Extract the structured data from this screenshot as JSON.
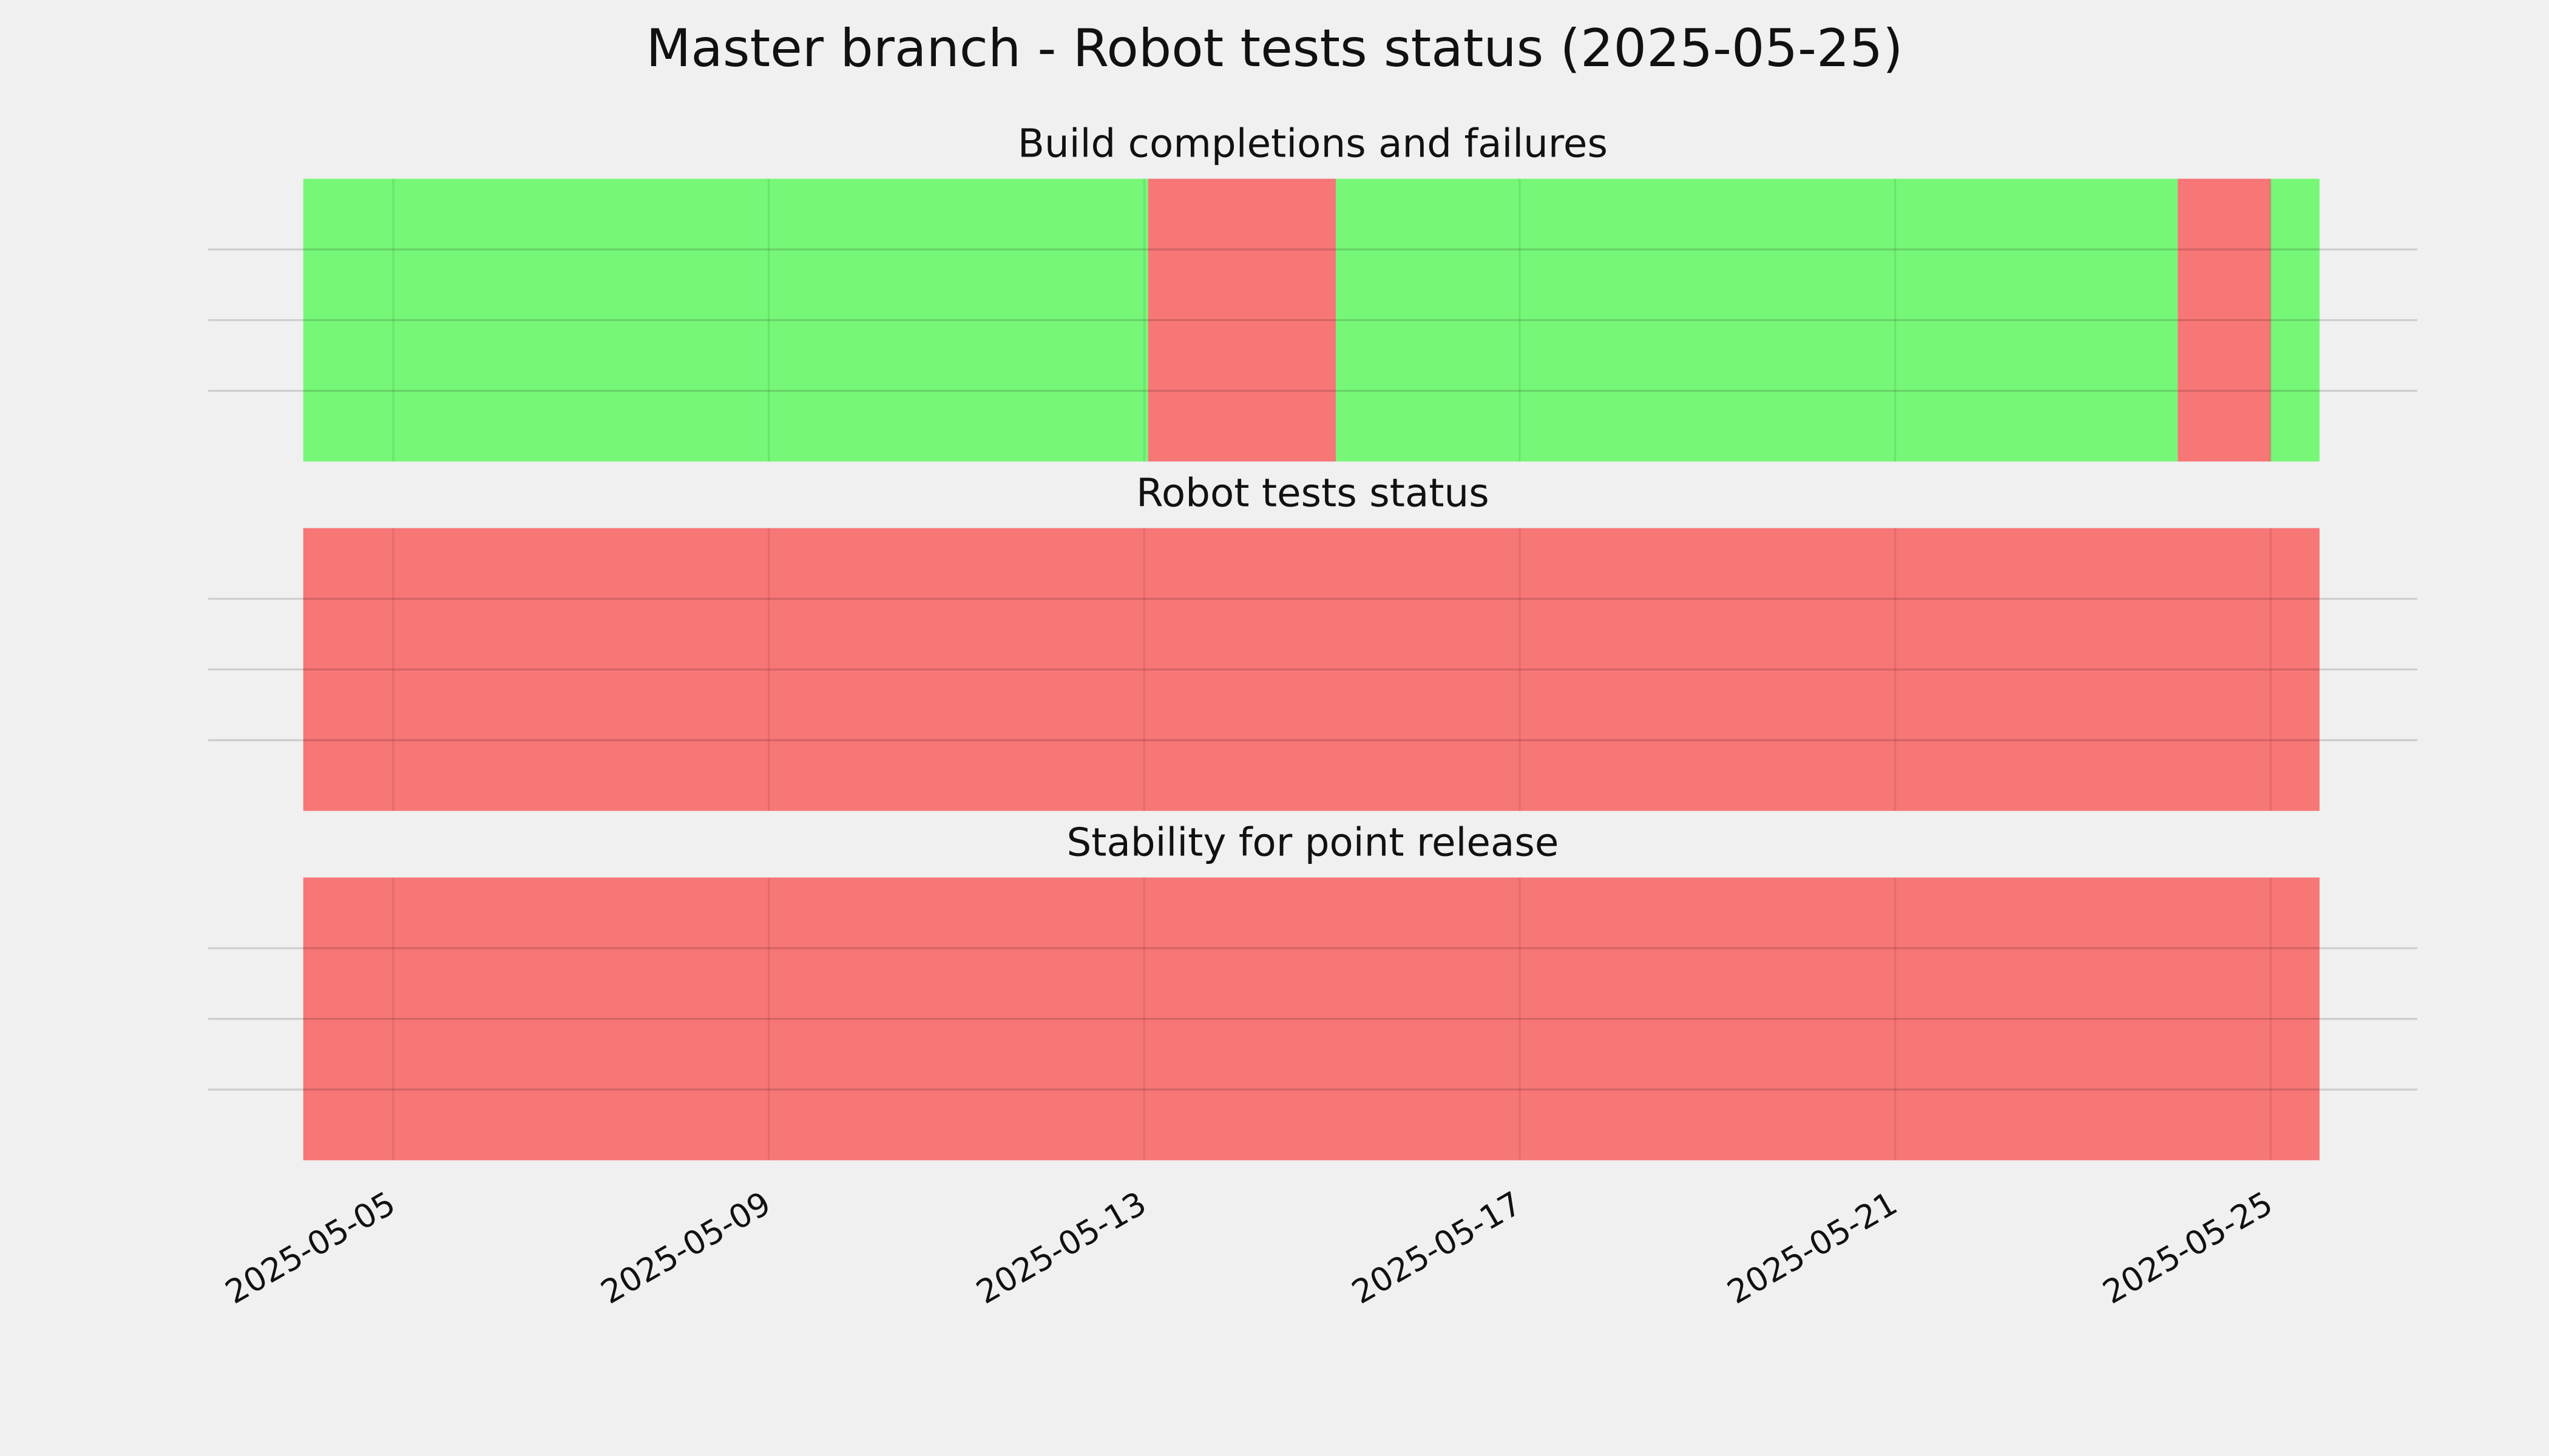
{
  "title": "Master branch - Robot tests status (2025-05-25)",
  "chart_data": [
    {
      "type": "timeline",
      "title": "Build completions and failures",
      "xlim": [
        "2025-05-03T00:40",
        "2025-05-26T13:30"
      ],
      "xticks": [
        "2025-05-05",
        "2025-05-09",
        "2025-05-13",
        "2025-05-17",
        "2025-05-21",
        "2025-05-25"
      ],
      "ylim": [
        0,
        1
      ],
      "yticks": [
        0.25,
        0.5,
        0.75
      ],
      "grid": true,
      "spans": [
        {
          "start": "2025-05-04T01:00",
          "end": "2025-05-13T01:00",
          "color": "#77f778"
        },
        {
          "start": "2025-05-13T01:00",
          "end": "2025-05-15T01:00",
          "color": "#f77676"
        },
        {
          "start": "2025-05-15T01:00",
          "end": "2025-05-24T00:15",
          "color": "#77f778"
        },
        {
          "start": "2025-05-24T00:15",
          "end": "2025-05-25T00:00",
          "color": "#f77676"
        },
        {
          "start": "2025-05-25T00:00",
          "end": "2025-05-25T12:30",
          "color": "#77f778"
        }
      ]
    },
    {
      "type": "timeline",
      "title": "Robot tests status",
      "xlim": [
        "2025-05-03T00:40",
        "2025-05-26T13:30"
      ],
      "xticks": [
        "2025-05-05",
        "2025-05-09",
        "2025-05-13",
        "2025-05-17",
        "2025-05-21",
        "2025-05-25"
      ],
      "ylim": [
        0,
        1
      ],
      "yticks": [
        0.25,
        0.5,
        0.75
      ],
      "grid": true,
      "spans": [
        {
          "start": "2025-05-04T01:00",
          "end": "2025-05-25T12:30",
          "color": "#f77676"
        }
      ]
    },
    {
      "type": "timeline",
      "title": "Stability for point release",
      "xlim": [
        "2025-05-03T00:40",
        "2025-05-26T13:30"
      ],
      "xticks": [
        "2025-05-05",
        "2025-05-09",
        "2025-05-13",
        "2025-05-17",
        "2025-05-21",
        "2025-05-25"
      ],
      "ylim": [
        0,
        1
      ],
      "yticks": [
        0.25,
        0.5,
        0.75
      ],
      "grid": true,
      "spans": [
        {
          "start": "2025-05-04T01:00",
          "end": "2025-05-25T12:30",
          "color": "#f77676"
        }
      ]
    }
  ]
}
